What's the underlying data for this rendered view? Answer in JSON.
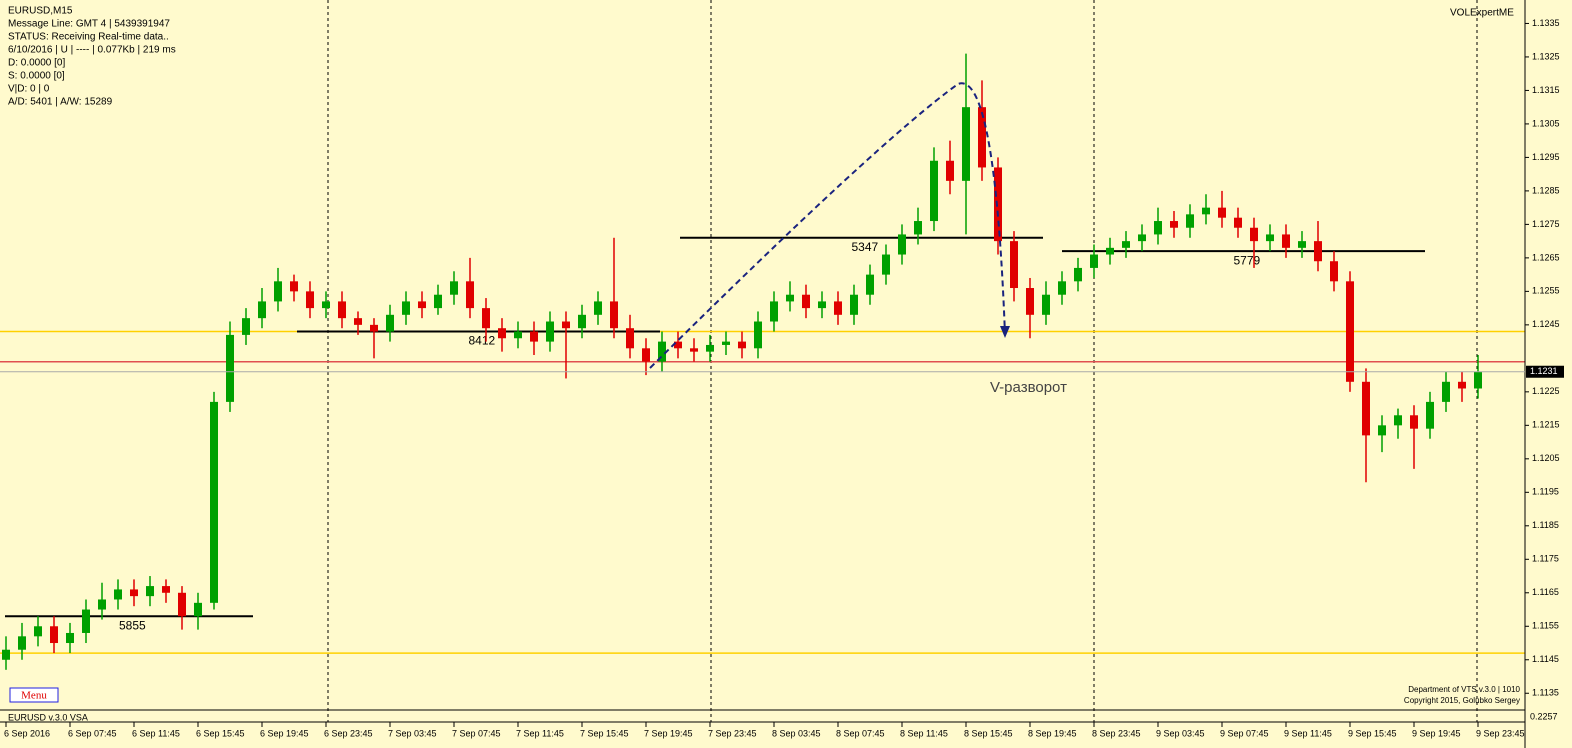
{
  "chart_data": {
    "type": "candlestick",
    "title": "EURUSD,M15",
    "info": [
      "Message Line: GMT 4 | 5439391947",
      "STATUS:  Receiving Real-time data..",
      "6/10/2016 | U | ---- | 0.077Kb | 219 ms",
      "D: 0.0000  [0]",
      "S: 0.0000  [0]",
      "V|D: 0 | 0",
      "A/D: 5401 | A/W: 15289"
    ],
    "brand": "VOLExpertME",
    "menu": "Menu",
    "footer": [
      "Department of VTS  v.3.0 | 1010",
      "Copyright 2015, Golubko Sergey"
    ],
    "subpanel": {
      "title": "EURUSD v.3.0 VSA",
      "value": "0.2257"
    },
    "annotation": "V-разворот",
    "last_price": 1.1231,
    "categories": [
      "6 Sep 2016",
      null,
      null,
      null,
      "6 Sep 07:45",
      null,
      null,
      null,
      "6 Sep 11:45",
      null,
      null,
      null,
      "6 Sep 15:45",
      null,
      null,
      null,
      "6 Sep 19:45",
      null,
      null,
      null,
      "6 Sep 23:45",
      null,
      null,
      null,
      "7 Sep 03:45",
      null,
      null,
      null,
      "7 Sep 07:45",
      null,
      null,
      null,
      "7 Sep 11:45",
      null,
      null,
      null,
      "7 Sep 15:45",
      null,
      null,
      null,
      "7 Sep 19:45",
      null,
      null,
      null,
      "7 Sep 23:45",
      null,
      null,
      null,
      "8 Sep 03:45",
      null,
      null,
      null,
      "8 Sep 07:45",
      null,
      null,
      null,
      "8 Sep 11:45",
      null,
      null,
      null,
      "8 Sep 15:45",
      null,
      null,
      null,
      "8 Sep 19:45",
      null,
      null,
      null,
      "8 Sep 23:45",
      null,
      null,
      null,
      "9 Sep 03:45",
      null,
      null,
      null,
      "9 Sep 07:45",
      null,
      null,
      null,
      "9 Sep 11:45",
      null,
      null,
      null,
      "9 Sep 15:45",
      null,
      null,
      null,
      "9 Sep 19:45",
      null,
      null,
      null,
      "9 Sep 23:45"
    ],
    "open": [
      1.1145,
      1.1148,
      1.1152,
      1.1155,
      1.115,
      1.1153,
      1.116,
      1.1163,
      1.1166,
      1.1164,
      1.1167,
      1.1165,
      1.1158,
      1.1162,
      1.1222,
      1.1242,
      1.1247,
      1.1252,
      1.1258,
      1.1255,
      1.125,
      1.1252,
      1.1247,
      1.1245,
      1.1243,
      1.1248,
      1.1252,
      1.125,
      1.1254,
      1.1258,
      1.125,
      1.1244,
      1.1241,
      1.1243,
      1.124,
      1.1246,
      1.1244,
      1.1248,
      1.1252,
      1.1244,
      1.1238,
      1.1234,
      1.124,
      1.1238,
      1.1237,
      1.1239,
      1.124,
      1.1238,
      1.1246,
      1.1252,
      1.1254,
      1.125,
      1.1252,
      1.1248,
      1.1254,
      1.126,
      1.1266,
      1.1272,
      1.1276,
      1.1294,
      1.1288,
      1.131,
      1.1292,
      1.127,
      1.1256,
      1.1248,
      1.1254,
      1.1258,
      1.1262,
      1.1266,
      1.1268,
      1.127,
      1.1272,
      1.1276,
      1.1274,
      1.1278,
      1.128,
      1.1277,
      1.1274,
      1.127,
      1.1272,
      1.1268,
      1.127,
      1.1264,
      1.1258,
      1.1228,
      1.1212,
      1.1215,
      1.1218,
      1.1214,
      1.1222,
      1.1228,
      1.1226
    ],
    "high": [
      1.1152,
      1.1156,
      1.1158,
      1.1158,
      1.1156,
      1.1163,
      1.1168,
      1.1169,
      1.1169,
      1.117,
      1.1169,
      1.1167,
      1.1165,
      1.1225,
      1.1246,
      1.125,
      1.1256,
      1.1262,
      1.126,
      1.1258,
      1.1255,
      1.1255,
      1.1249,
      1.1247,
      1.1251,
      1.1255,
      1.1255,
      1.1257,
      1.1261,
      1.1265,
      1.1253,
      1.1247,
      1.1246,
      1.1246,
      1.1249,
      1.1249,
      1.1251,
      1.1255,
      1.1271,
      1.1248,
      1.1241,
      1.1243,
      1.1243,
      1.1241,
      1.1242,
      1.1243,
      1.1243,
      1.1249,
      1.1255,
      1.1258,
      1.1257,
      1.1255,
      1.1255,
      1.1257,
      1.1263,
      1.1269,
      1.1275,
      1.128,
      1.1298,
      1.13,
      1.1326,
      1.1318,
      1.1295,
      1.1273,
      1.1259,
      1.1258,
      1.1261,
      1.1265,
      1.1269,
      1.1271,
      1.1273,
      1.1275,
      1.128,
      1.1279,
      1.1281,
      1.1284,
      1.1285,
      1.128,
      1.1277,
      1.1275,
      1.1275,
      1.1273,
      1.1276,
      1.1267,
      1.1261,
      1.1232,
      1.1218,
      1.122,
      1.1221,
      1.1225,
      1.1231,
      1.1231,
      1.1236
    ],
    "low": [
      1.1142,
      1.1145,
      1.1149,
      1.1147,
      1.1147,
      1.115,
      1.1157,
      1.116,
      1.1161,
      1.1161,
      1.1162,
      1.1154,
      1.1154,
      1.116,
      1.1219,
      1.1239,
      1.1244,
      1.1249,
      1.1252,
      1.1247,
      1.1247,
      1.1244,
      1.1242,
      1.1235,
      1.124,
      1.1245,
      1.1247,
      1.1248,
      1.1251,
      1.1247,
      1.124,
      1.1237,
      1.1238,
      1.1236,
      1.1237,
      1.1229,
      1.1241,
      1.1245,
      1.1241,
      1.1235,
      1.123,
      1.1231,
      1.1235,
      1.1234,
      1.1234,
      1.1236,
      1.1235,
      1.1235,
      1.1243,
      1.1249,
      1.1247,
      1.1247,
      1.1245,
      1.1245,
      1.1251,
      1.1257,
      1.1263,
      1.1269,
      1.1273,
      1.1284,
      1.1272,
      1.1288,
      1.1266,
      1.1252,
      1.1241,
      1.1245,
      1.1251,
      1.1255,
      1.1259,
      1.1263,
      1.1265,
      1.1267,
      1.1269,
      1.1271,
      1.1271,
      1.1275,
      1.1274,
      1.1271,
      1.1262,
      1.1267,
      1.1265,
      1.1265,
      1.1261,
      1.1255,
      1.1225,
      1.1198,
      1.1207,
      1.1211,
      1.1202,
      1.1211,
      1.1219,
      1.1222,
      1.1223
    ],
    "close": [
      1.1148,
      1.1152,
      1.1155,
      1.115,
      1.1153,
      1.116,
      1.1163,
      1.1166,
      1.1164,
      1.1167,
      1.1165,
      1.1158,
      1.1162,
      1.1222,
      1.1242,
      1.1247,
      1.1252,
      1.1258,
      1.1255,
      1.125,
      1.1252,
      1.1247,
      1.1245,
      1.1243,
      1.1248,
      1.1252,
      1.125,
      1.1254,
      1.1258,
      1.125,
      1.1244,
      1.1241,
      1.1243,
      1.124,
      1.1246,
      1.1244,
      1.1248,
      1.1252,
      1.1244,
      1.1238,
      1.1234,
      1.124,
      1.1238,
      1.1237,
      1.1239,
      1.124,
      1.1238,
      1.1246,
      1.1252,
      1.1254,
      1.125,
      1.1252,
      1.1248,
      1.1254,
      1.126,
      1.1266,
      1.1272,
      1.1276,
      1.1294,
      1.1288,
      1.131,
      1.1292,
      1.127,
      1.1256,
      1.1248,
      1.1254,
      1.1258,
      1.1262,
      1.1266,
      1.1268,
      1.127,
      1.1272,
      1.1276,
      1.1274,
      1.1278,
      1.128,
      1.1277,
      1.1274,
      1.127,
      1.1272,
      1.1268,
      1.127,
      1.1264,
      1.1258,
      1.1228,
      1.1212,
      1.1215,
      1.1218,
      1.1214,
      1.1222,
      1.1228,
      1.1226,
      1.1231
    ],
    "up_color": "#00a000",
    "down_color": "#e00000",
    "levels": [
      {
        "price": 1.1158,
        "label": 5855
      },
      {
        "price": 1.1243,
        "label": 8412
      },
      {
        "price": 1.1271,
        "label": 5347
      },
      {
        "price": 1.1267,
        "label": 5779
      }
    ],
    "lines": [
      {
        "price": 1.1243,
        "color": "#ffd000"
      },
      {
        "price": 1.1147,
        "color": "#ffd000"
      },
      {
        "price": 1.1234,
        "color": "#e05050"
      }
    ],
    "ylim": [
      1.113,
      1.1342
    ],
    "yticks": [
      1.1335,
      1.1325,
      1.1315,
      1.1305,
      1.1295,
      1.1285,
      1.1275,
      1.1265,
      1.1255,
      1.1245,
      1.1225,
      1.1215,
      1.1205,
      1.1195,
      1.1185,
      1.1175,
      1.1165,
      1.1155,
      1.1145,
      1.1135
    ]
  }
}
